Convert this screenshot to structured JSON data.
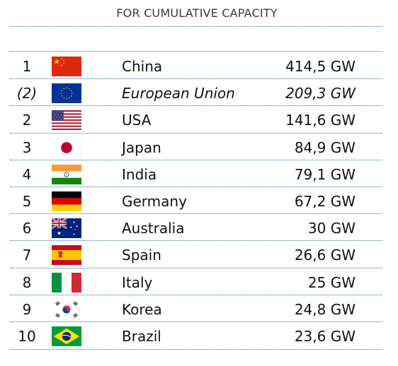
{
  "header": {
    "title": "FOR CUMULATIVE CAPACITY"
  },
  "rows": [
    {
      "rank": "1",
      "flag": "china-flag-icon",
      "country": "China",
      "value": "414,5 GW"
    },
    {
      "rank": "(2)",
      "flag": "eu-flag-icon",
      "country": "European Union",
      "value": "209,3 GW"
    },
    {
      "rank": "2",
      "flag": "usa-flag-icon",
      "country": "USA",
      "value": "141,6 GW"
    },
    {
      "rank": "3",
      "flag": "japan-flag-icon",
      "country": "Japan",
      "value": "84,9 GW"
    },
    {
      "rank": "4",
      "flag": "india-flag-icon",
      "country": "India",
      "value": "79,1 GW"
    },
    {
      "rank": "5",
      "flag": "germany-flag-icon",
      "country": "Germany",
      "value": "67,2 GW"
    },
    {
      "rank": "6",
      "flag": "australia-flag-icon",
      "country": "Australia",
      "value": "30 GW"
    },
    {
      "rank": "7",
      "flag": "spain-flag-icon",
      "country": "Spain",
      "value": "26,6 GW"
    },
    {
      "rank": "8",
      "flag": "italy-flag-icon",
      "country": "Italy",
      "value": "25 GW"
    },
    {
      "rank": "9",
      "flag": "korea-flag-icon",
      "country": "Korea",
      "value": "24,8 GW"
    },
    {
      "rank": "10",
      "flag": "brazil-flag-icon",
      "country": "Brazil",
      "value": "23,6 GW"
    }
  ],
  "colors": {
    "divider": "#2b6cb0",
    "text": "#111111",
    "title": "#3a3a3a"
  }
}
